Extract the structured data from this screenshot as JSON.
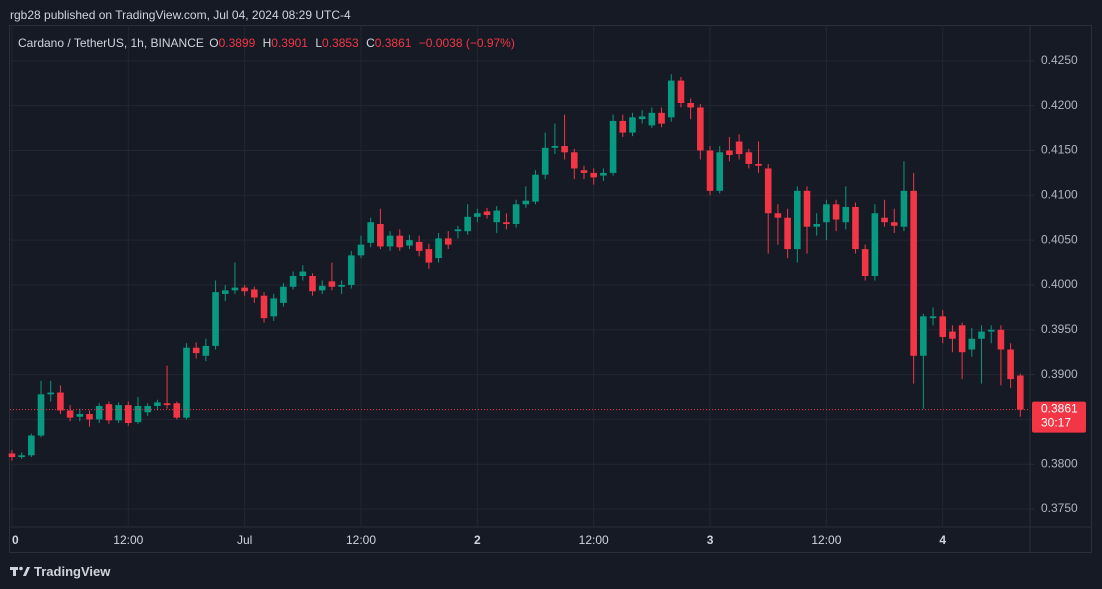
{
  "header": {
    "published": "rgb28 published on TradingView.com, Jul 04, 2024 08:29 UTC-4"
  },
  "footer": {
    "brand": "TradingView"
  },
  "chart_data": {
    "type": "candlestick",
    "symbol": "Cardano / TetherUS, 1h, BINANCE",
    "ohlc_letters": [
      "O",
      "H",
      "L",
      "C"
    ],
    "change": "−0.0038 (−0.97%)",
    "countdown": "30:17",
    "up_color": "#089981",
    "down_color": "#f23645",
    "grid": true,
    "xlim": [
      -0.2,
      105
    ],
    "xticks": [
      {
        "value": 0,
        "label": "0"
      },
      {
        "value": 12,
        "label": "12:00"
      },
      {
        "value": 24,
        "label": "Jul"
      },
      {
        "value": 36,
        "label": "12:00"
      },
      {
        "value": 48,
        "label": "2"
      },
      {
        "value": 60,
        "label": "12:00"
      },
      {
        "value": 72,
        "label": "3"
      },
      {
        "value": 84,
        "label": "12:00"
      },
      {
        "value": 96,
        "label": "4"
      }
    ],
    "ylim": [
      0.373,
      0.429
    ],
    "yticks": [
      {
        "value": 0.425,
        "label": "0.4250"
      },
      {
        "value": 0.42,
        "label": "0.4200"
      },
      {
        "value": 0.415,
        "label": "0.4150"
      },
      {
        "value": 0.41,
        "label": "0.4100"
      },
      {
        "value": 0.405,
        "label": "0.4050"
      },
      {
        "value": 0.4,
        "label": "0.4000"
      },
      {
        "value": 0.395,
        "label": "0.3950"
      },
      {
        "value": 0.39,
        "label": "0.3900"
      },
      {
        "value": 0.385,
        "label": "0.3850"
      },
      {
        "value": 0.38,
        "label": "0.3800"
      },
      {
        "value": 0.375,
        "label": "0.3750"
      }
    ],
    "candles": [
      [
        0.3812,
        0.3816,
        0.3804,
        0.3808
      ],
      [
        0.3808,
        0.3813,
        0.3806,
        0.381
      ],
      [
        0.381,
        0.3834,
        0.3808,
        0.3832
      ],
      [
        0.3832,
        0.3893,
        0.383,
        0.3878
      ],
      [
        0.3878,
        0.3893,
        0.387,
        0.388
      ],
      [
        0.388,
        0.3888,
        0.3856,
        0.386
      ],
      [
        0.386,
        0.3866,
        0.3848,
        0.3852
      ],
      [
        0.3853,
        0.3862,
        0.3848,
        0.3856
      ],
      [
        0.3856,
        0.386,
        0.3842,
        0.385
      ],
      [
        0.385,
        0.3868,
        0.3846,
        0.3865
      ],
      [
        0.3867,
        0.387,
        0.3845,
        0.3849
      ],
      [
        0.3849,
        0.3869,
        0.3846,
        0.3866
      ],
      [
        0.3866,
        0.387,
        0.3843,
        0.3846
      ],
      [
        0.3847,
        0.3875,
        0.3845,
        0.3865
      ],
      [
        0.3858,
        0.3868,
        0.3854,
        0.3865
      ],
      [
        0.3865,
        0.3872,
        0.386,
        0.3869
      ],
      [
        0.3868,
        0.391,
        0.3862,
        0.3866
      ],
      [
        0.3868,
        0.387,
        0.385,
        0.3852
      ],
      [
        0.3852,
        0.3935,
        0.385,
        0.393
      ],
      [
        0.393,
        0.3936,
        0.3918,
        0.3924
      ],
      [
        0.3921,
        0.394,
        0.3915,
        0.3932
      ],
      [
        0.3932,
        0.4005,
        0.3928,
        0.3992
      ],
      [
        0.399,
        0.4,
        0.3982,
        0.3994
      ],
      [
        0.3994,
        0.4025,
        0.399,
        0.3997
      ],
      [
        0.3997,
        0.4,
        0.3988,
        0.3993
      ],
      [
        0.3995,
        0.3998,
        0.398,
        0.3986
      ],
      [
        0.3988,
        0.3992,
        0.3958,
        0.3963
      ],
      [
        0.3965,
        0.399,
        0.396,
        0.3985
      ],
      [
        0.398,
        0.4002,
        0.3976,
        0.3998
      ],
      [
        0.3998,
        0.4015,
        0.3995,
        0.401
      ],
      [
        0.401,
        0.4022,
        0.4005,
        0.4015
      ],
      [
        0.401,
        0.4013,
        0.3988,
        0.3993
      ],
      [
        0.3994,
        0.4005,
        0.399,
        0.3999
      ],
      [
        0.4004,
        0.4025,
        0.3994,
        0.3998
      ],
      [
        0.3998,
        0.4005,
        0.399,
        0.4
      ],
      [
        0.4,
        0.4038,
        0.3996,
        0.4033
      ],
      [
        0.4033,
        0.4055,
        0.403,
        0.4045
      ],
      [
        0.4047,
        0.4075,
        0.4042,
        0.407
      ],
      [
        0.4068,
        0.4085,
        0.404,
        0.4043
      ],
      [
        0.4043,
        0.406,
        0.4038,
        0.4055
      ],
      [
        0.4055,
        0.4062,
        0.4038,
        0.4042
      ],
      [
        0.4044,
        0.4056,
        0.404,
        0.405
      ],
      [
        0.4048,
        0.4055,
        0.4032,
        0.4038
      ],
      [
        0.404,
        0.4046,
        0.4018,
        0.4025
      ],
      [
        0.403,
        0.4058,
        0.4025,
        0.4052
      ],
      [
        0.4052,
        0.406,
        0.404,
        0.4045
      ],
      [
        0.406,
        0.4066,
        0.4052,
        0.4062
      ],
      [
        0.406,
        0.409,
        0.4056,
        0.4076
      ],
      [
        0.4076,
        0.4085,
        0.407,
        0.408
      ],
      [
        0.4082,
        0.4086,
        0.4074,
        0.4078
      ],
      [
        0.407,
        0.4088,
        0.4058,
        0.4083
      ],
      [
        0.407,
        0.408,
        0.4062,
        0.4068
      ],
      [
        0.4068,
        0.4095,
        0.4064,
        0.409
      ],
      [
        0.409,
        0.411,
        0.4086,
        0.4094
      ],
      [
        0.4093,
        0.4128,
        0.409,
        0.4123
      ],
      [
        0.4123,
        0.417,
        0.4118,
        0.4153
      ],
      [
        0.4153,
        0.418,
        0.4146,
        0.4155
      ],
      [
        0.4155,
        0.419,
        0.414,
        0.4148
      ],
      [
        0.4148,
        0.4152,
        0.4118,
        0.413
      ],
      [
        0.4128,
        0.4133,
        0.4118,
        0.4125
      ],
      [
        0.4125,
        0.413,
        0.4112,
        0.412
      ],
      [
        0.4122,
        0.413,
        0.4116,
        0.4125
      ],
      [
        0.4125,
        0.419,
        0.4122,
        0.4183
      ],
      [
        0.4183,
        0.419,
        0.4165,
        0.417
      ],
      [
        0.417,
        0.4192,
        0.4166,
        0.4187
      ],
      [
        0.4185,
        0.4195,
        0.418,
        0.4188
      ],
      [
        0.4178,
        0.4198,
        0.4175,
        0.4192
      ],
      [
        0.4192,
        0.4198,
        0.4176,
        0.418
      ],
      [
        0.4187,
        0.4235,
        0.4182,
        0.4228
      ],
      [
        0.4228,
        0.4232,
        0.4198,
        0.4203
      ],
      [
        0.4203,
        0.4208,
        0.4185,
        0.4198
      ],
      [
        0.4198,
        0.4202,
        0.414,
        0.415
      ],
      [
        0.415,
        0.4155,
        0.41,
        0.4105
      ],
      [
        0.4105,
        0.4155,
        0.4102,
        0.4148
      ],
      [
        0.415,
        0.4165,
        0.4138,
        0.4145
      ],
      [
        0.416,
        0.4168,
        0.414,
        0.4146
      ],
      [
        0.4148,
        0.4152,
        0.413,
        0.4135
      ],
      [
        0.4135,
        0.416,
        0.4125,
        0.4133
      ],
      [
        0.413,
        0.4135,
        0.4035,
        0.408
      ],
      [
        0.408,
        0.409,
        0.4045,
        0.4075
      ],
      [
        0.4075,
        0.4085,
        0.403,
        0.404
      ],
      [
        0.404,
        0.411,
        0.4025,
        0.4105
      ],
      [
        0.4105,
        0.411,
        0.4035,
        0.4065
      ],
      [
        0.4065,
        0.408,
        0.4055,
        0.4068
      ],
      [
        0.407,
        0.4095,
        0.405,
        0.409
      ],
      [
        0.409,
        0.4095,
        0.406,
        0.4073
      ],
      [
        0.407,
        0.411,
        0.4062,
        0.4087
      ],
      [
        0.4087,
        0.4092,
        0.4035,
        0.404
      ],
      [
        0.404,
        0.4045,
        0.4005,
        0.401
      ],
      [
        0.401,
        0.409,
        0.4005,
        0.408
      ],
      [
        0.4075,
        0.4095,
        0.4065,
        0.407
      ],
      [
        0.407,
        0.4085,
        0.4058,
        0.4066
      ],
      [
        0.4065,
        0.4138,
        0.406,
        0.4105
      ],
      [
        0.4105,
        0.4125,
        0.389,
        0.3921
      ],
      [
        0.3921,
        0.3968,
        0.3862,
        0.3965
      ],
      [
        0.3963,
        0.3975,
        0.3955,
        0.3965
      ],
      [
        0.3965,
        0.3972,
        0.3935,
        0.3942
      ],
      [
        0.3948,
        0.3955,
        0.3925,
        0.394
      ],
      [
        0.3955,
        0.3958,
        0.3895,
        0.3925
      ],
      [
        0.3928,
        0.3952,
        0.392,
        0.394
      ],
      [
        0.394,
        0.3955,
        0.389,
        0.3948
      ],
      [
        0.3948,
        0.3955,
        0.3935,
        0.395
      ],
      [
        0.395,
        0.3955,
        0.3888,
        0.3928
      ],
      [
        0.3928,
        0.3935,
        0.3885,
        0.3895
      ],
      [
        0.3899,
        0.3901,
        0.3853,
        0.3861
      ]
    ]
  }
}
